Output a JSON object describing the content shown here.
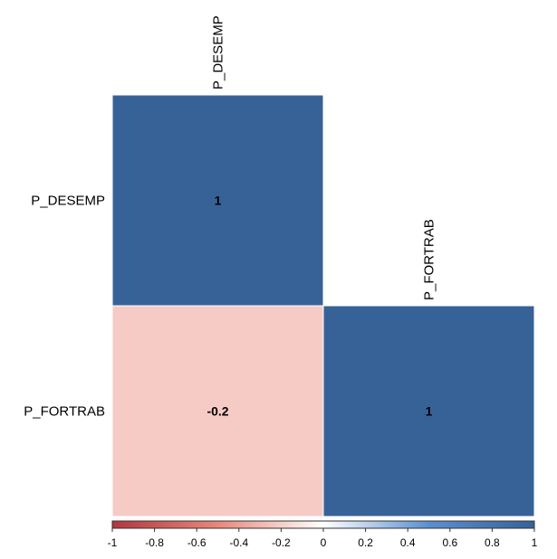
{
  "chart_data": {
    "type": "heatmap",
    "variables": [
      "P_DESEMP",
      "P_FORTRAB"
    ],
    "layout": "lower-triangle",
    "cells": [
      {
        "row": "P_DESEMP",
        "col": "P_DESEMP",
        "value": 1,
        "label": "1"
      },
      {
        "row": "P_FORTRAB",
        "col": "P_DESEMP",
        "value": -0.2,
        "label": "-0.2"
      },
      {
        "row": "P_FORTRAB",
        "col": "P_FORTRAB",
        "value": 1,
        "label": "1"
      }
    ],
    "colorbar": {
      "range": [
        -1,
        1
      ],
      "ticks": [
        -1,
        -0.8,
        -0.6,
        -0.4,
        -0.2,
        0,
        0.2,
        0.4,
        0.6,
        0.8,
        1
      ],
      "tick_labels": [
        "-1",
        "-0.8",
        "-0.6",
        "-0.4",
        "-0.2",
        "0",
        "0.2",
        "0.4",
        "0.6",
        "0.8",
        "1"
      ],
      "colors": {
        "negative_end": "#b2363d",
        "negative_mid": "#e8877a",
        "center": "#ffffff",
        "positive_mid": "#5b8fd0",
        "positive_end": "#376297"
      },
      "position": "bottom"
    },
    "cell_colors": {
      "1": "#376298",
      "-0.2": "#f6cbc5"
    }
  }
}
